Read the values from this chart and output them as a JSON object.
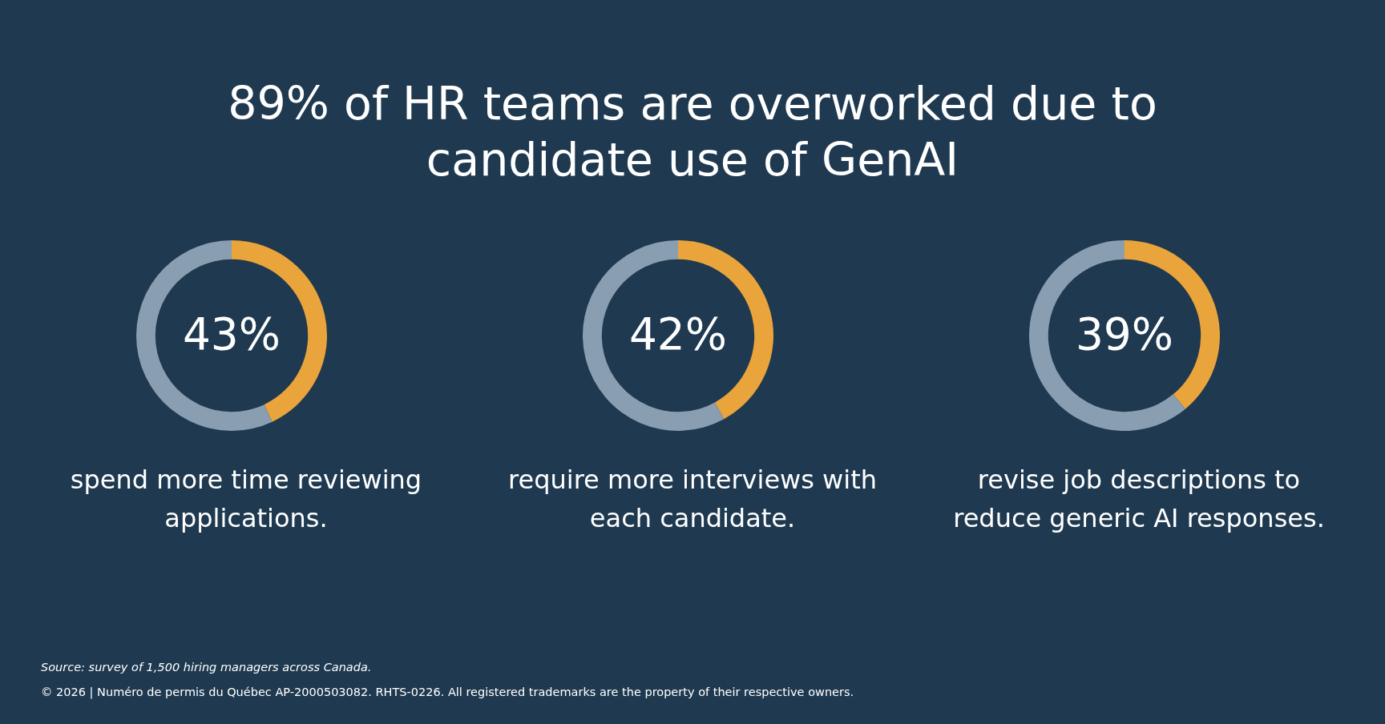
{
  "chart_data": [
    {
      "type": "other",
      "title": "89% of HR teams are overworked due to candidate use of GenAI",
      "annotations": [
        "Source: survey of 1,500 hiring managers across Canada.",
        "© 2026 | Numéro de permis du Québec AP-2000503082. RHTS-0226. All registered trademarks are the property of their respective owners."
      ]
    },
    {
      "type": "donut",
      "title": "spend more time reviewing applications.",
      "categories": [
        null,
        null
      ],
      "values": [
        43,
        57
      ],
      "colors": [
        "#e9a43b",
        "#8a9eb2"
      ],
      "value_labels": [
        "43%",
        null
      ]
    },
    {
      "type": "donut",
      "title": "require more interviews with each candidate.",
      "categories": [
        null,
        null
      ],
      "values": [
        42,
        58
      ],
      "colors": [
        "#e9a43b",
        "#8a9eb2"
      ],
      "value_labels": [
        "42%",
        null
      ]
    },
    {
      "type": "donut",
      "title": "revise job descriptions to reduce generic AI responses.",
      "categories": [
        null,
        null
      ],
      "values": [
        39,
        61
      ],
      "colors": [
        "#e9a43b",
        "#8a9eb2"
      ],
      "value_labels": [
        "39%",
        null
      ]
    }
  ]
}
